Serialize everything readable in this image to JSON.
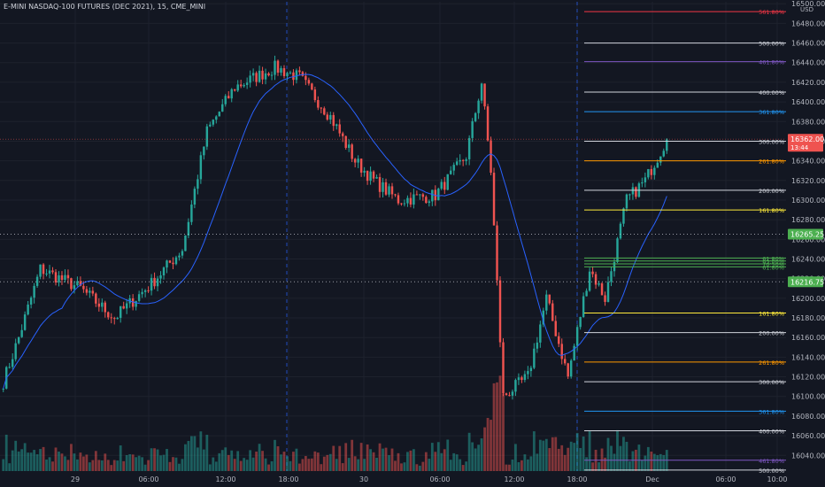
{
  "header": {
    "symbol": "E-MINI NASDAQ-100 FUTURES (DEC 2021), 15, CME_MINI"
  },
  "axis": {
    "currency": "USD"
  },
  "colors": {
    "background": "#131722",
    "grid": "#1e222d",
    "up": "#26a69a",
    "down": "#ef5350",
    "ma": "#2962ff",
    "axis_text": "#b2b5be",
    "session_line": "#2962ff",
    "badge_green": "#4caf50",
    "badge_red": "#ef5350"
  },
  "chart_data": {
    "type": "candlestick",
    "interval": "15",
    "y_axis": {
      "range": [
        16024,
        16502
      ],
      "ticks": [
        16500,
        16480,
        16460,
        16440,
        16420,
        16400,
        16380,
        16360,
        16340,
        16320,
        16300,
        16280,
        16260,
        16240,
        16220,
        16200,
        16180,
        16160,
        16140,
        16120,
        16100,
        16080,
        16060,
        16040
      ]
    },
    "x_axis": {
      "ticks": [
        "29",
        "06:00",
        "12:00",
        "18:00",
        "30",
        "06:00",
        "12:00",
        "18:00",
        "Dec",
        "06:00",
        "10:00"
      ]
    },
    "price_path": {
      "description_free_anchors": [
        {
          "bar": 0,
          "price": 16115
        },
        {
          "bar": 5,
          "price": 16160
        },
        {
          "bar": 12,
          "price": 16230
        },
        {
          "bar": 25,
          "price": 16210
        },
        {
          "bar": 36,
          "price": 16180
        },
        {
          "bar": 48,
          "price": 16215
        },
        {
          "bar": 58,
          "price": 16250
        },
        {
          "bar": 66,
          "price": 16370
        },
        {
          "bar": 75,
          "price": 16415
        },
        {
          "bar": 88,
          "price": 16435
        },
        {
          "bar": 96,
          "price": 16425
        },
        {
          "bar": 106,
          "price": 16385
        },
        {
          "bar": 114,
          "price": 16340
        },
        {
          "bar": 120,
          "price": 16320
        },
        {
          "bar": 128,
          "price": 16300
        },
        {
          "bar": 140,
          "price": 16305
        },
        {
          "bar": 150,
          "price": 16345
        },
        {
          "bar": 155,
          "price": 16420
        },
        {
          "bar": 158,
          "price": 16330
        },
        {
          "bar": 162,
          "price": 16100
        },
        {
          "bar": 170,
          "price": 16120
        },
        {
          "bar": 176,
          "price": 16200
        },
        {
          "bar": 183,
          "price": 16120
        },
        {
          "bar": 190,
          "price": 16230
        },
        {
          "bar": 195,
          "price": 16200
        },
        {
          "bar": 202,
          "price": 16300
        },
        {
          "bar": 208,
          "price": 16320
        },
        {
          "bar": 215,
          "price": 16362
        }
      ]
    },
    "last_price": 16362.0,
    "price_labels": [
      {
        "price": 16362.0,
        "text": "16362.00",
        "subtext": "13:44",
        "color": "red"
      },
      {
        "price": 16265.25,
        "text": "16265.25",
        "color": "green"
      },
      {
        "price": 16216.75,
        "text": "16216.75",
        "color": "green"
      }
    ],
    "reference_lines": [
      16265.25,
      16216.75
    ],
    "fib_levels": [
      {
        "label": "561.80%",
        "price": 16492,
        "color": "#f23645"
      },
      {
        "label": "500.00%",
        "price": 16460,
        "color": "#d1d4dc"
      },
      {
        "label": "461.80%",
        "price": 16441,
        "color": "#7e57c2"
      },
      {
        "label": "400.00%",
        "price": 16410,
        "color": "#d1d4dc"
      },
      {
        "label": "361.80%",
        "price": 16390,
        "color": "#2196f3"
      },
      {
        "label": "300.00%",
        "price": 16360,
        "color": "#d1d4dc"
      },
      {
        "label": "261.80%",
        "price": 16340,
        "color": "#ff9800"
      },
      {
        "label": "200.00%",
        "price": 16310,
        "color": "#d1d4dc"
      },
      {
        "label": "161.80%",
        "price": 16290,
        "color": "#ffeb3b"
      },
      {
        "label": "61.80%",
        "price": 16241,
        "color": "#4caf50"
      },
      {
        "label": "65.00%",
        "price": 16238,
        "color": "#4caf50"
      },
      {
        "label": "70.50%",
        "price": 16235,
        "color": "#4caf50"
      },
      {
        "label": "61.80%",
        "price": 16232,
        "color": "#4caf50"
      },
      {
        "label": "161.80%",
        "price": 16185,
        "color": "#ffeb3b"
      },
      {
        "label": "200.00%",
        "price": 16165,
        "color": "#d1d4dc"
      },
      {
        "label": "261.80%",
        "price": 16135,
        "color": "#ff9800"
      },
      {
        "label": "300.00%",
        "price": 16115,
        "color": "#d1d4dc"
      },
      {
        "label": "361.80%",
        "price": 16085,
        "color": "#2196f3"
      },
      {
        "label": "400.00%",
        "price": 16065,
        "color": "#d1d4dc"
      },
      {
        "label": "461.80%",
        "price": 16035,
        "color": "#7e57c2"
      },
      {
        "label": "500.00%",
        "price": 16025,
        "color": "#d1d4dc"
      }
    ]
  }
}
